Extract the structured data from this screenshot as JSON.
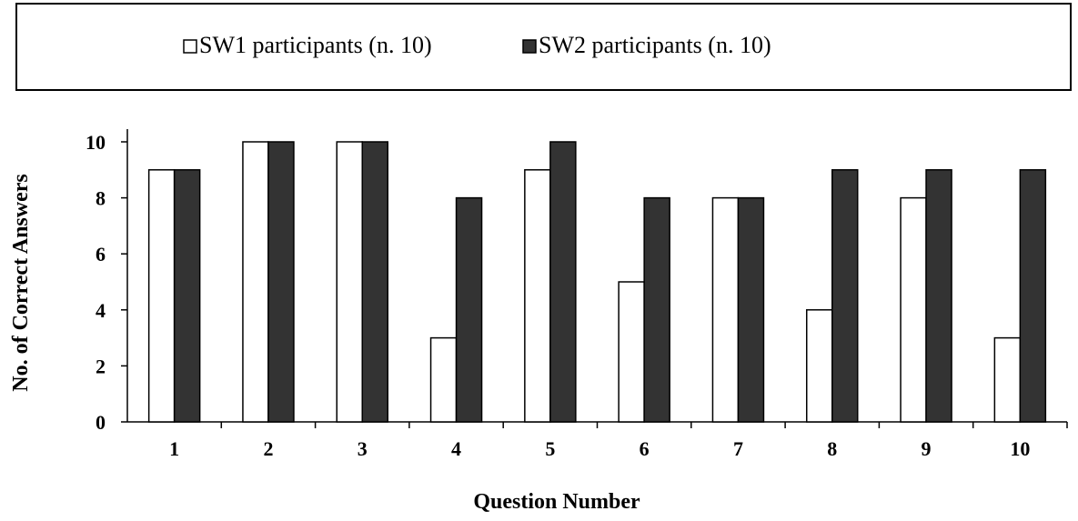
{
  "chart_data": {
    "type": "bar",
    "categories": [
      "1",
      "2",
      "3",
      "4",
      "5",
      "6",
      "7",
      "8",
      "9",
      "10"
    ],
    "series": [
      {
        "name": "SW1 participants (n. 10)",
        "values": [
          9,
          10,
          10,
          3,
          9,
          5,
          8,
          4,
          8,
          3
        ],
        "color": "#ffffff"
      },
      {
        "name": "SW2 participants (n. 10)",
        "values": [
          9,
          10,
          10,
          8,
          10,
          8,
          8,
          9,
          9,
          9
        ],
        "color": "#333333"
      }
    ],
    "xlabel": "Question Number",
    "ylabel": "No. of Correct Answers",
    "ylim": [
      0,
      10
    ],
    "yticks": [
      "0",
      "2",
      "4",
      "6",
      "8",
      "10"
    ],
    "grid": false,
    "legend_position": "top"
  }
}
